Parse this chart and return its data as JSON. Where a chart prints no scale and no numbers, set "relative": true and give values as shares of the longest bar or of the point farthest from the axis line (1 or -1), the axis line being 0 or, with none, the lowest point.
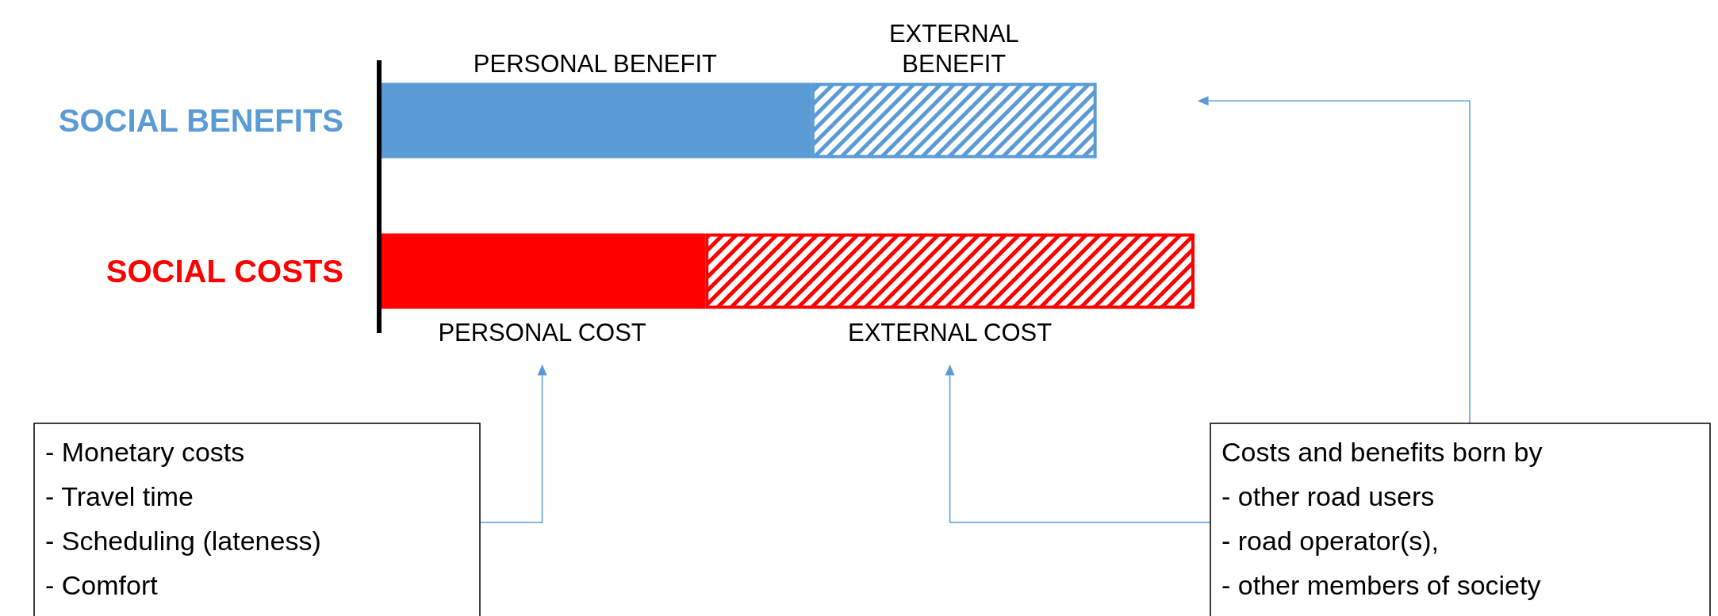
{
  "chart_data": {
    "type": "bar",
    "orientation": "horizontal",
    "stacked": true,
    "relative": true,
    "categories": [
      "SOCIAL BENEFITS",
      "SOCIAL COSTS"
    ],
    "series": [
      {
        "colors": [
          "#5b9bd5",
          "#ff0000"
        ],
        "values": [
          0.53,
          0.4
        ]
      },
      {
        "type": "bar",
        "colors": [
          "#5b9bd5",
          "#ff0000"
        ],
        "values": [
          0.35,
          0.6
        ]
      }
    ],
    "annotations": [
      "PERSONAL BENEFIT",
      "EXTERNAL BENEFIT",
      "PERSONAL COST",
      "EXTERNAL COST",
      "- Monetary costs\n- Travel time\n- Scheduling (lateness)\n- Comfort",
      "Costs and benefits born by\n- other road users\n- road operator(s),\n- other members of society"
    ]
  }
}
